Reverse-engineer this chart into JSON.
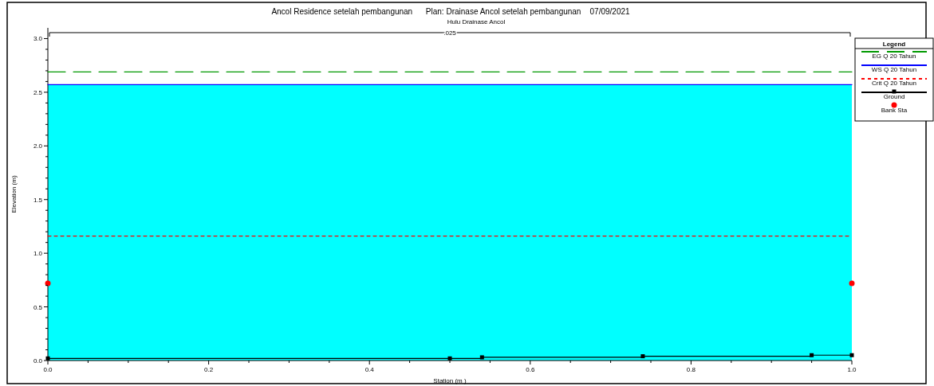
{
  "chart_data": {
    "type": "line",
    "title": "Ancol Residence setelah pembangunan      Plan: Drainase Ancol setelah pembangunan    07/09/2021",
    "subtitle": "Hulu Drainase Ancol",
    "xlabel": "Station (m )",
    "ylabel": "Elevation (m)",
    "legend_title": "Legend",
    "legend": "right",
    "annotations": [
      ".025"
    ],
    "xlim": [
      0,
      1
    ],
    "ylim": [
      0,
      3.1
    ],
    "xticks": [
      {
        "value": 0,
        "label": "0.0"
      },
      {
        "value": 0.05,
        "label": null
      },
      {
        "value": 0.1,
        "label": null
      },
      {
        "value": 0.15,
        "label": null
      },
      {
        "value": 0.2,
        "label": "0.2"
      },
      {
        "value": 0.25,
        "label": null
      },
      {
        "value": 0.3,
        "label": null
      },
      {
        "value": 0.35,
        "label": null
      },
      {
        "value": 0.4,
        "label": "0.4"
      },
      {
        "value": 0.45,
        "label": null
      },
      {
        "value": 0.5,
        "label": null
      },
      {
        "value": 0.55,
        "label": null
      },
      {
        "value": 0.6,
        "label": "0.6"
      },
      {
        "value": 0.65,
        "label": null
      },
      {
        "value": 0.7,
        "label": null
      },
      {
        "value": 0.75,
        "label": null
      },
      {
        "value": 0.8,
        "label": "0.8"
      },
      {
        "value": 0.85,
        "label": null
      },
      {
        "value": 0.9,
        "label": null
      },
      {
        "value": 0.95,
        "label": null
      },
      {
        "value": 1,
        "label": "1.0"
      }
    ],
    "yticks": [
      {
        "value": 0,
        "label": "0.0"
      },
      {
        "value": 0.1,
        "label": null
      },
      {
        "value": 0.2,
        "label": null
      },
      {
        "value": 0.3,
        "label": null
      },
      {
        "value": 0.4,
        "label": null
      },
      {
        "value": 0.5,
        "label": "0.5"
      },
      {
        "value": 0.6,
        "label": null
      },
      {
        "value": 0.7,
        "label": null
      },
      {
        "value": 0.8,
        "label": null
      },
      {
        "value": 0.9,
        "label": null
      },
      {
        "value": 1,
        "label": "1.0"
      },
      {
        "value": 1.1,
        "label": null
      },
      {
        "value": 1.2,
        "label": null
      },
      {
        "value": 1.3,
        "label": null
      },
      {
        "value": 1.4,
        "label": null
      },
      {
        "value": 1.5,
        "label": "1.5"
      },
      {
        "value": 1.6,
        "label": null
      },
      {
        "value": 1.7,
        "label": null
      },
      {
        "value": 1.8,
        "label": null
      },
      {
        "value": 1.9,
        "label": null
      },
      {
        "value": 2,
        "label": "2.0"
      },
      {
        "value": 2.1,
        "label": null
      },
      {
        "value": 2.2,
        "label": null
      },
      {
        "value": 2.3,
        "label": null
      },
      {
        "value": 2.4,
        "label": null
      },
      {
        "value": 2.5,
        "label": "2.5"
      },
      {
        "value": 2.6,
        "label": null
      },
      {
        "value": 2.7,
        "label": null
      },
      {
        "value": 2.8,
        "label": null
      },
      {
        "value": 2.9,
        "label": null
      },
      {
        "value": 3,
        "label": "3.0"
      }
    ],
    "bands": [
      {
        "axis": "y",
        "from": 0,
        "to": 2.57,
        "color": "#00ffff"
      }
    ],
    "series": [
      {
        "name": "EG Q 20 Tahun",
        "color": "#009900",
        "line_style": "dashed",
        "marker": "none",
        "x": [
          0,
          1
        ],
        "values": [
          2.69,
          2.69
        ]
      },
      {
        "name": "WS Q 20 Tahun",
        "color": "#0000ff",
        "line_style": "solid",
        "marker": "none",
        "x": [
          0,
          1
        ],
        "values": [
          2.57,
          2.57
        ]
      },
      {
        "name": "Crit Q 20 Tahun",
        "color": "#ff0000",
        "line_style": "dotted",
        "marker": "none",
        "x": [
          0,
          1
        ],
        "values": [
          1.16,
          1.16
        ]
      },
      {
        "name": "Ground",
        "type": "step",
        "color": "#000000",
        "line_style": "solid",
        "marker": "square",
        "x": [
          0,
          0.5,
          0.54,
          0.74,
          0.95,
          1
        ],
        "values": [
          0.02,
          0.02,
          0.03,
          0.04,
          0.05,
          0.05
        ]
      },
      {
        "name": "Bank Sta",
        "type": "scatter",
        "color": "#ff0000",
        "marker": "circle",
        "x": [
          0,
          1
        ],
        "values": [
          0.72,
          0.72
        ]
      }
    ]
  }
}
